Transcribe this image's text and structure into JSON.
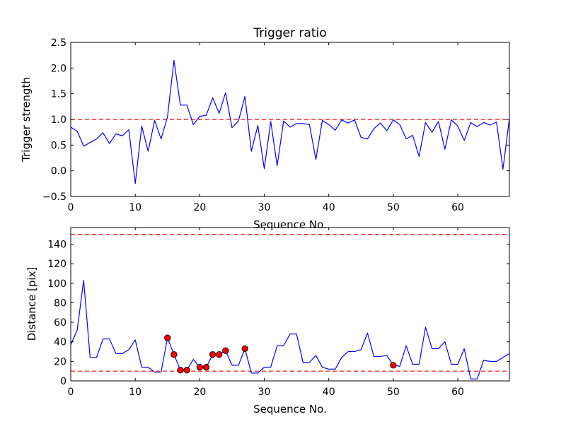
{
  "chart_data": [
    {
      "type": "line",
      "title": "Trigger ratio",
      "xlabel": "Sequence No.",
      "ylabel": "Trigger strength",
      "xlim": [
        0,
        68
      ],
      "ylim": [
        -0.5,
        2.5
      ],
      "xticks": [
        "0",
        "10",
        "20",
        "30",
        "40",
        "50",
        "60"
      ],
      "yticks": [
        "−0.5",
        "0.0",
        "0.5",
        "1.0",
        "1.5",
        "2.0",
        "2.5"
      ],
      "grid": false,
      "series": [
        {
          "color": "#0000ff",
          "x": [
            0,
            1,
            2,
            3,
            4,
            5,
            6,
            7,
            8,
            9,
            10,
            11,
            12,
            13,
            14,
            15,
            16,
            17,
            18,
            19,
            20,
            21,
            22,
            23,
            24,
            25,
            26,
            27,
            28,
            29,
            30,
            31,
            32,
            33,
            34,
            35,
            36,
            37,
            38,
            39,
            40,
            41,
            42,
            43,
            44,
            45,
            46,
            47,
            48,
            49,
            50,
            51,
            52,
            53,
            54,
            55,
            56,
            57,
            58,
            59,
            60,
            61,
            62,
            63,
            64,
            65,
            66,
            67,
            68
          ],
          "y": [
            0.85,
            0.77,
            0.48,
            0.55,
            0.62,
            0.74,
            0.53,
            0.72,
            0.68,
            0.8,
            -0.25,
            0.87,
            0.38,
            0.98,
            0.62,
            1.05,
            2.15,
            1.28,
            1.28,
            0.9,
            1.06,
            1.08,
            1.42,
            1.12,
            1.52,
            0.84,
            0.97,
            1.45,
            0.38,
            0.88,
            0.04,
            0.96,
            0.1,
            0.97,
            0.85,
            0.92,
            0.92,
            0.9,
            0.22,
            0.98,
            0.9,
            0.79,
            0.99,
            0.93,
            0.99,
            0.65,
            0.62,
            0.82,
            0.93,
            0.78,
            0.99,
            0.9,
            0.62,
            0.69,
            0.28,
            0.94,
            0.75,
            0.96,
            0.42,
            0.99,
            0.87,
            0.59,
            0.94,
            0.86,
            0.94,
            0.89,
            0.95,
            0.03,
            1.02
          ]
        }
      ],
      "reference_lines": [
        {
          "y": 1.0,
          "color": "#ff0000",
          "style": "dashed"
        }
      ]
    },
    {
      "type": "line",
      "title": "",
      "xlabel": "Sequence No.",
      "ylabel": "Distance [pix]",
      "xlim": [
        0,
        68
      ],
      "ylim": [
        0,
        157
      ],
      "xticks": [
        "0",
        "10",
        "20",
        "30",
        "40",
        "50",
        "60"
      ],
      "yticks": [
        "0",
        "20",
        "40",
        "60",
        "80",
        "100",
        "120",
        "140"
      ],
      "grid": false,
      "series": [
        {
          "color": "#0000ff",
          "x": [
            0,
            1,
            2,
            3,
            4,
            5,
            6,
            7,
            8,
            9,
            10,
            11,
            12,
            13,
            14,
            15,
            16,
            17,
            18,
            19,
            20,
            21,
            22,
            23,
            24,
            25,
            26,
            27,
            28,
            29,
            30,
            31,
            32,
            33,
            34,
            35,
            36,
            37,
            38,
            39,
            40,
            41,
            42,
            43,
            44,
            45,
            46,
            47,
            48,
            49,
            50,
            51,
            52,
            53,
            54,
            55,
            56,
            57,
            58,
            59,
            60,
            61,
            62,
            63,
            64,
            65,
            66,
            67,
            68
          ],
          "y": [
            37,
            52,
            103,
            24,
            24,
            43,
            43,
            28,
            28,
            32,
            42,
            14,
            14,
            9,
            9,
            44,
            27,
            11,
            11,
            22,
            14,
            14,
            27,
            27,
            31,
            16,
            16,
            33,
            8,
            8,
            14,
            14,
            36,
            36,
            48,
            48,
            19,
            19,
            26,
            14,
            12,
            12,
            24,
            30,
            30,
            32,
            49,
            25,
            25,
            26,
            16,
            15,
            36,
            17,
            17,
            55,
            33,
            33,
            40,
            17,
            17,
            33,
            2,
            2,
            21,
            20,
            20,
            24,
            28
          ]
        }
      ],
      "markers": {
        "color": "#ff0000",
        "x": [
          15,
          16,
          17,
          18,
          20,
          21,
          22,
          23,
          24,
          27,
          50
        ],
        "y": [
          44,
          27,
          11,
          11,
          14,
          14,
          27,
          27,
          31,
          33,
          16
        ]
      },
      "reference_lines": [
        {
          "y": 150,
          "color": "#ff0000",
          "style": "dashed"
        },
        {
          "y": 10,
          "color": "#ff0000",
          "style": "dashed"
        }
      ]
    }
  ]
}
